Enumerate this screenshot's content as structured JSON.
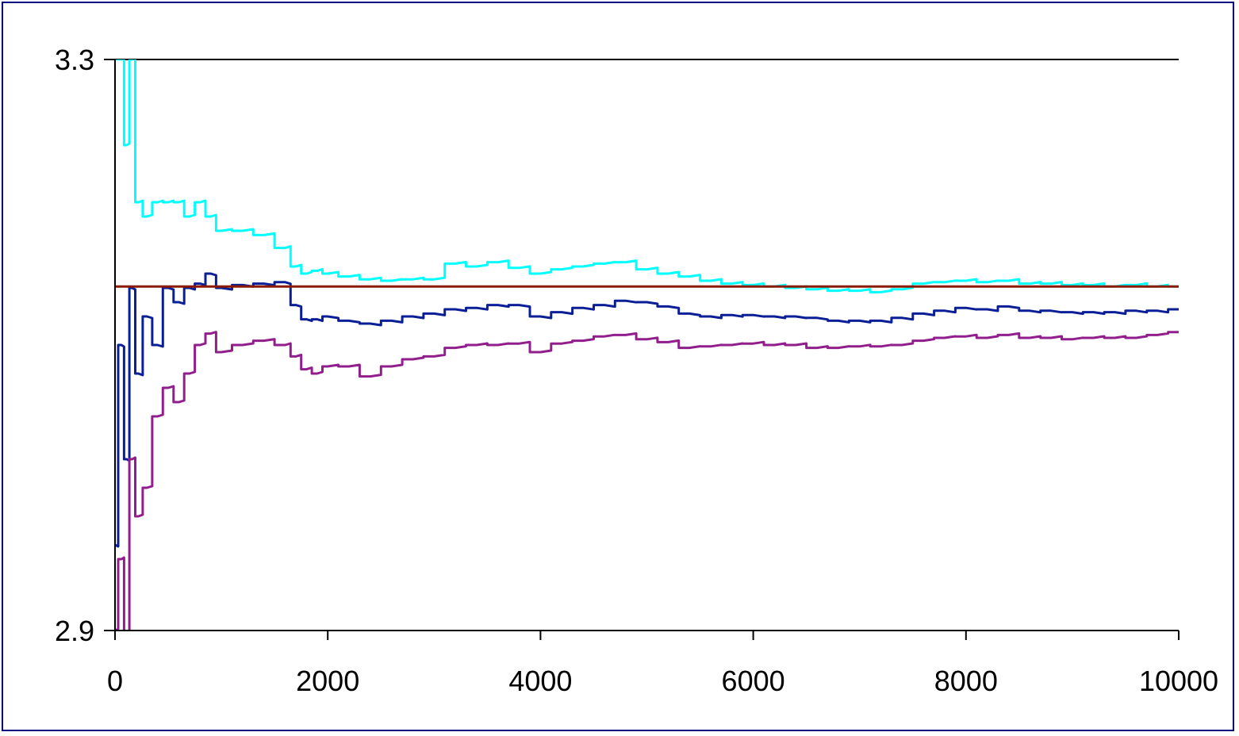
{
  "chart_data": {
    "type": "line",
    "title": "",
    "xlabel": "",
    "ylabel": "",
    "xlim": [
      0,
      10000
    ],
    "ylim": [
      2.9,
      3.3
    ],
    "x_ticks": [
      0,
      2000,
      4000,
      6000,
      8000,
      10000
    ],
    "x_tick_labels": [
      "0",
      "2000",
      "4000",
      "6000",
      "8000",
      "10000"
    ],
    "y_ticks": [
      2.9,
      3.3
    ],
    "y_tick_labels": [
      "2.9",
      "3.3"
    ],
    "grid": "horizontal line at 3.3 only",
    "legend": "none",
    "reference_line": {
      "y": 3.141,
      "color": "#8B1A00"
    },
    "series": [
      {
        "color": "#00FFFF",
        "x": [
          0,
          60,
          110,
          160,
          220,
          300,
          400,
          500,
          600,
          700,
          800,
          900,
          1000,
          1200,
          1400,
          1600,
          1700,
          1800,
          1900,
          2000,
          2200,
          2400,
          2600,
          2800,
          3000,
          3200,
          3400,
          3600,
          3800,
          4000,
          4200,
          4400,
          4600,
          4800,
          5000,
          5200,
          5400,
          5600,
          5800,
          6000,
          6200,
          6400,
          6600,
          6800,
          7000,
          7200,
          7400,
          7600,
          7800,
          8000,
          8200,
          8400,
          8600,
          8800,
          9000,
          9200,
          9400,
          9600,
          9800,
          10000
        ],
        "y": [
          3.3,
          3.3,
          3.24,
          3.3,
          3.2,
          3.19,
          3.2,
          3.2,
          3.2,
          3.19,
          3.2,
          3.19,
          3.18,
          3.18,
          3.177,
          3.168,
          3.155,
          3.15,
          3.152,
          3.15,
          3.148,
          3.146,
          3.145,
          3.146,
          3.146,
          3.157,
          3.155,
          3.158,
          3.154,
          3.15,
          3.153,
          3.155,
          3.157,
          3.158,
          3.153,
          3.15,
          3.148,
          3.145,
          3.143,
          3.142,
          3.141,
          3.14,
          3.139,
          3.138,
          3.138,
          3.137,
          3.139,
          3.143,
          3.144,
          3.145,
          3.144,
          3.145,
          3.143,
          3.143,
          3.142,
          3.142,
          3.141,
          3.142,
          3.141,
          3.141
        ]
      },
      {
        "color": "#0A1E96",
        "x": [
          0,
          60,
          110,
          160,
          220,
          300,
          400,
          500,
          600,
          700,
          800,
          900,
          1000,
          1200,
          1400,
          1600,
          1700,
          1800,
          1900,
          2000,
          2200,
          2400,
          2600,
          2800,
          3000,
          3200,
          3400,
          3600,
          3800,
          4000,
          4200,
          4400,
          4600,
          4800,
          5000,
          5200,
          5400,
          5600,
          5800,
          6000,
          6200,
          6400,
          6600,
          6800,
          7000,
          7200,
          7400,
          7600,
          7800,
          8000,
          8200,
          8400,
          8600,
          8800,
          9000,
          9200,
          9400,
          9600,
          9800,
          10000
        ],
        "y": [
          2.96,
          3.1,
          3.02,
          3.14,
          3.08,
          3.12,
          3.1,
          3.14,
          3.13,
          3.14,
          3.143,
          3.15,
          3.14,
          3.142,
          3.143,
          3.144,
          3.128,
          3.118,
          3.118,
          3.12,
          3.117,
          3.115,
          3.117,
          3.12,
          3.122,
          3.125,
          3.126,
          3.128,
          3.128,
          3.12,
          3.123,
          3.126,
          3.128,
          3.131,
          3.13,
          3.127,
          3.122,
          3.12,
          3.121,
          3.121,
          3.12,
          3.12,
          3.119,
          3.117,
          3.117,
          3.117,
          3.119,
          3.122,
          3.124,
          3.126,
          3.125,
          3.127,
          3.124,
          3.124,
          3.123,
          3.123,
          3.123,
          3.124,
          3.124,
          3.125
        ]
      },
      {
        "color": "#911E8C",
        "x": [
          0,
          60,
          110,
          160,
          220,
          300,
          400,
          500,
          600,
          700,
          800,
          900,
          1000,
          1200,
          1400,
          1600,
          1700,
          1800,
          1900,
          2000,
          2200,
          2400,
          2600,
          2800,
          3000,
          3200,
          3400,
          3600,
          3800,
          4000,
          4200,
          4400,
          4600,
          4800,
          5000,
          5200,
          5400,
          5600,
          5800,
          6000,
          6200,
          6400,
          6600,
          6800,
          7000,
          7200,
          7400,
          7600,
          7800,
          8000,
          8200,
          8400,
          8600,
          8800,
          9000,
          9200,
          9400,
          9600,
          9800,
          10000
        ],
        "y": [
          2.9,
          2.95,
          2.88,
          3.02,
          2.98,
          3.0,
          3.05,
          3.07,
          3.06,
          3.08,
          3.1,
          3.108,
          3.095,
          3.1,
          3.103,
          3.1,
          3.092,
          3.083,
          3.08,
          3.085,
          3.085,
          3.078,
          3.085,
          3.09,
          3.092,
          3.098,
          3.1,
          3.1,
          3.101,
          3.095,
          3.101,
          3.103,
          3.106,
          3.107,
          3.104,
          3.102,
          3.098,
          3.099,
          3.1,
          3.101,
          3.1,
          3.1,
          3.098,
          3.098,
          3.099,
          3.099,
          3.1,
          3.103,
          3.105,
          3.106,
          3.105,
          3.107,
          3.105,
          3.105,
          3.104,
          3.105,
          3.105,
          3.105,
          3.107,
          3.109
        ]
      }
    ]
  }
}
